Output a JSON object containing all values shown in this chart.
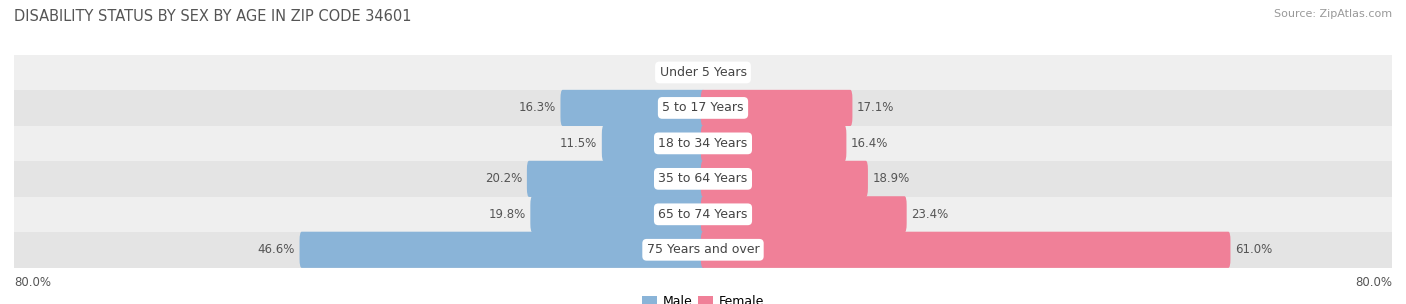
{
  "title": "DISABILITY STATUS BY SEX BY AGE IN ZIP CODE 34601",
  "source": "Source: ZipAtlas.com",
  "categories": [
    "Under 5 Years",
    "5 to 17 Years",
    "18 to 34 Years",
    "35 to 64 Years",
    "65 to 74 Years",
    "75 Years and over"
  ],
  "male_values": [
    0.0,
    16.3,
    11.5,
    20.2,
    19.8,
    46.6
  ],
  "female_values": [
    0.0,
    17.1,
    16.4,
    18.9,
    23.4,
    61.0
  ],
  "male_color": "#8ab4d8",
  "female_color": "#f08098",
  "male_color_light": "#aac8e8",
  "female_color_light": "#f4aab8",
  "row_bg_odd": "#efefef",
  "row_bg_even": "#e4e4e4",
  "axis_max": 80.0,
  "title_color": "#555555",
  "source_color": "#999999",
  "value_label_color": "#555555",
  "category_color": "#444444",
  "bar_height": 0.52,
  "title_fontsize": 10.5,
  "label_fontsize": 8.5,
  "value_fontsize": 8.5,
  "category_fontsize": 9.0,
  "source_fontsize": 8.0,
  "legend_fontsize": 9.0
}
